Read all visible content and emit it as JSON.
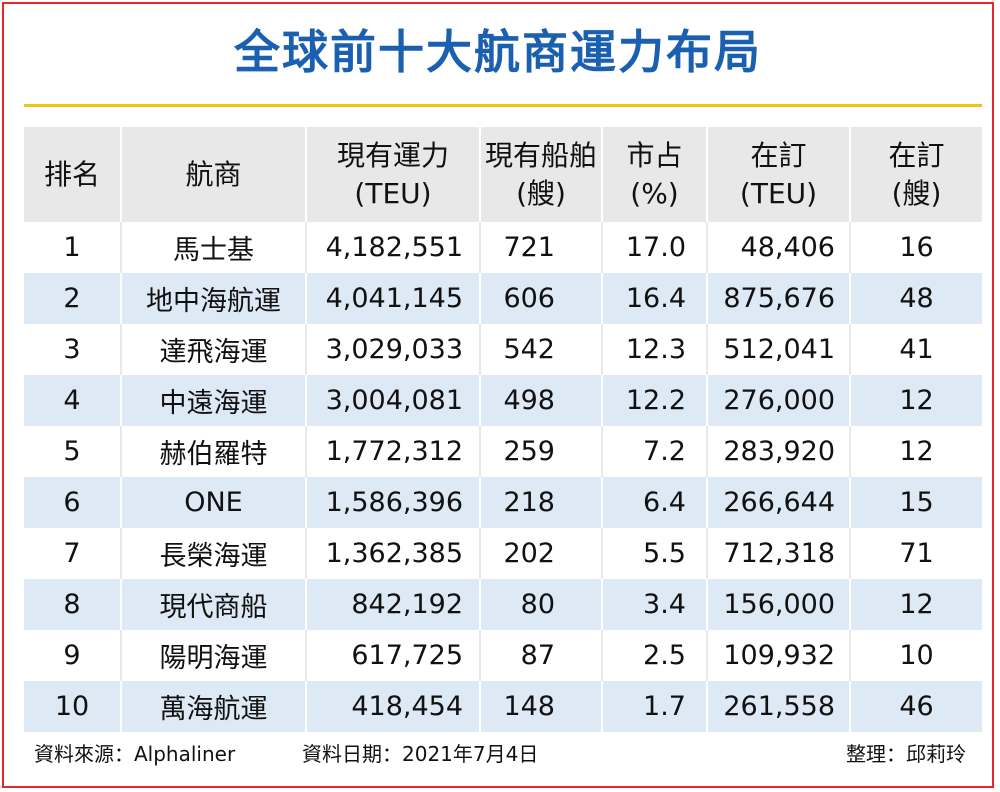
{
  "chart_data": {
    "type": "table",
    "title": "全球前十大航商運力布局",
    "columns": [
      {
        "line1": "排名",
        "line2": ""
      },
      {
        "line1": "航商",
        "line2": ""
      },
      {
        "line1": "現有運力",
        "line2": "(TEU)"
      },
      {
        "line1": "現有船舶",
        "line2": "(艘)"
      },
      {
        "line1": "市占",
        "line2": "(%)"
      },
      {
        "line1": "在訂",
        "line2": "(TEU)"
      },
      {
        "line1": "在訂",
        "line2": "(艘)"
      }
    ],
    "rows": [
      {
        "rank": "1",
        "carrier": "馬士基",
        "capacity": "4,182,551",
        "ships": "721",
        "share": "17.0",
        "orderbook_teu": "48,406",
        "orderbook_ships": "16"
      },
      {
        "rank": "2",
        "carrier": "地中海航運",
        "capacity": "4,041,145",
        "ships": "606",
        "share": "16.4",
        "orderbook_teu": "875,676",
        "orderbook_ships": "48"
      },
      {
        "rank": "3",
        "carrier": "達飛海運",
        "capacity": "3,029,033",
        "ships": "542",
        "share": "12.3",
        "orderbook_teu": "512,041",
        "orderbook_ships": "41"
      },
      {
        "rank": "4",
        "carrier": "中遠海運",
        "capacity": "3,004,081",
        "ships": "498",
        "share": "12.2",
        "orderbook_teu": "276,000",
        "orderbook_ships": "12"
      },
      {
        "rank": "5",
        "carrier": "赫伯羅特",
        "capacity": "1,772,312",
        "ships": "259",
        "share": "7.2",
        "orderbook_teu": "283,920",
        "orderbook_ships": "12"
      },
      {
        "rank": "6",
        "carrier": "ONE",
        "capacity": "1,586,396",
        "ships": "218",
        "share": "6.4",
        "orderbook_teu": "266,644",
        "orderbook_ships": "15"
      },
      {
        "rank": "7",
        "carrier": "長榮海運",
        "capacity": "1,362,385",
        "ships": "202",
        "share": "5.5",
        "orderbook_teu": "712,318",
        "orderbook_ships": "71"
      },
      {
        "rank": "8",
        "carrier": "現代商船",
        "capacity": "842,192",
        "ships": "80",
        "share": "3.4",
        "orderbook_teu": "156,000",
        "orderbook_ships": "12"
      },
      {
        "rank": "9",
        "carrier": "陽明海運",
        "capacity": "617,725",
        "ships": "87",
        "share": "2.5",
        "orderbook_teu": "109,932",
        "orderbook_ships": "10"
      },
      {
        "rank": "10",
        "carrier": "萬海航運",
        "capacity": "418,454",
        "ships": "148",
        "share": "1.7",
        "orderbook_teu": "261,558",
        "orderbook_ships": "46"
      }
    ]
  },
  "footer": {
    "source": "資料來源：Alphaliner",
    "date": "資料日期：2021年7月4日",
    "editor": "整理：邱莉玲"
  },
  "colors": {
    "title": "#1b5fb0",
    "rule": "#f0c419",
    "border": "#e8262b",
    "header_bg": "#e8e8e8",
    "alt_row_bg": "#dde9f5"
  }
}
